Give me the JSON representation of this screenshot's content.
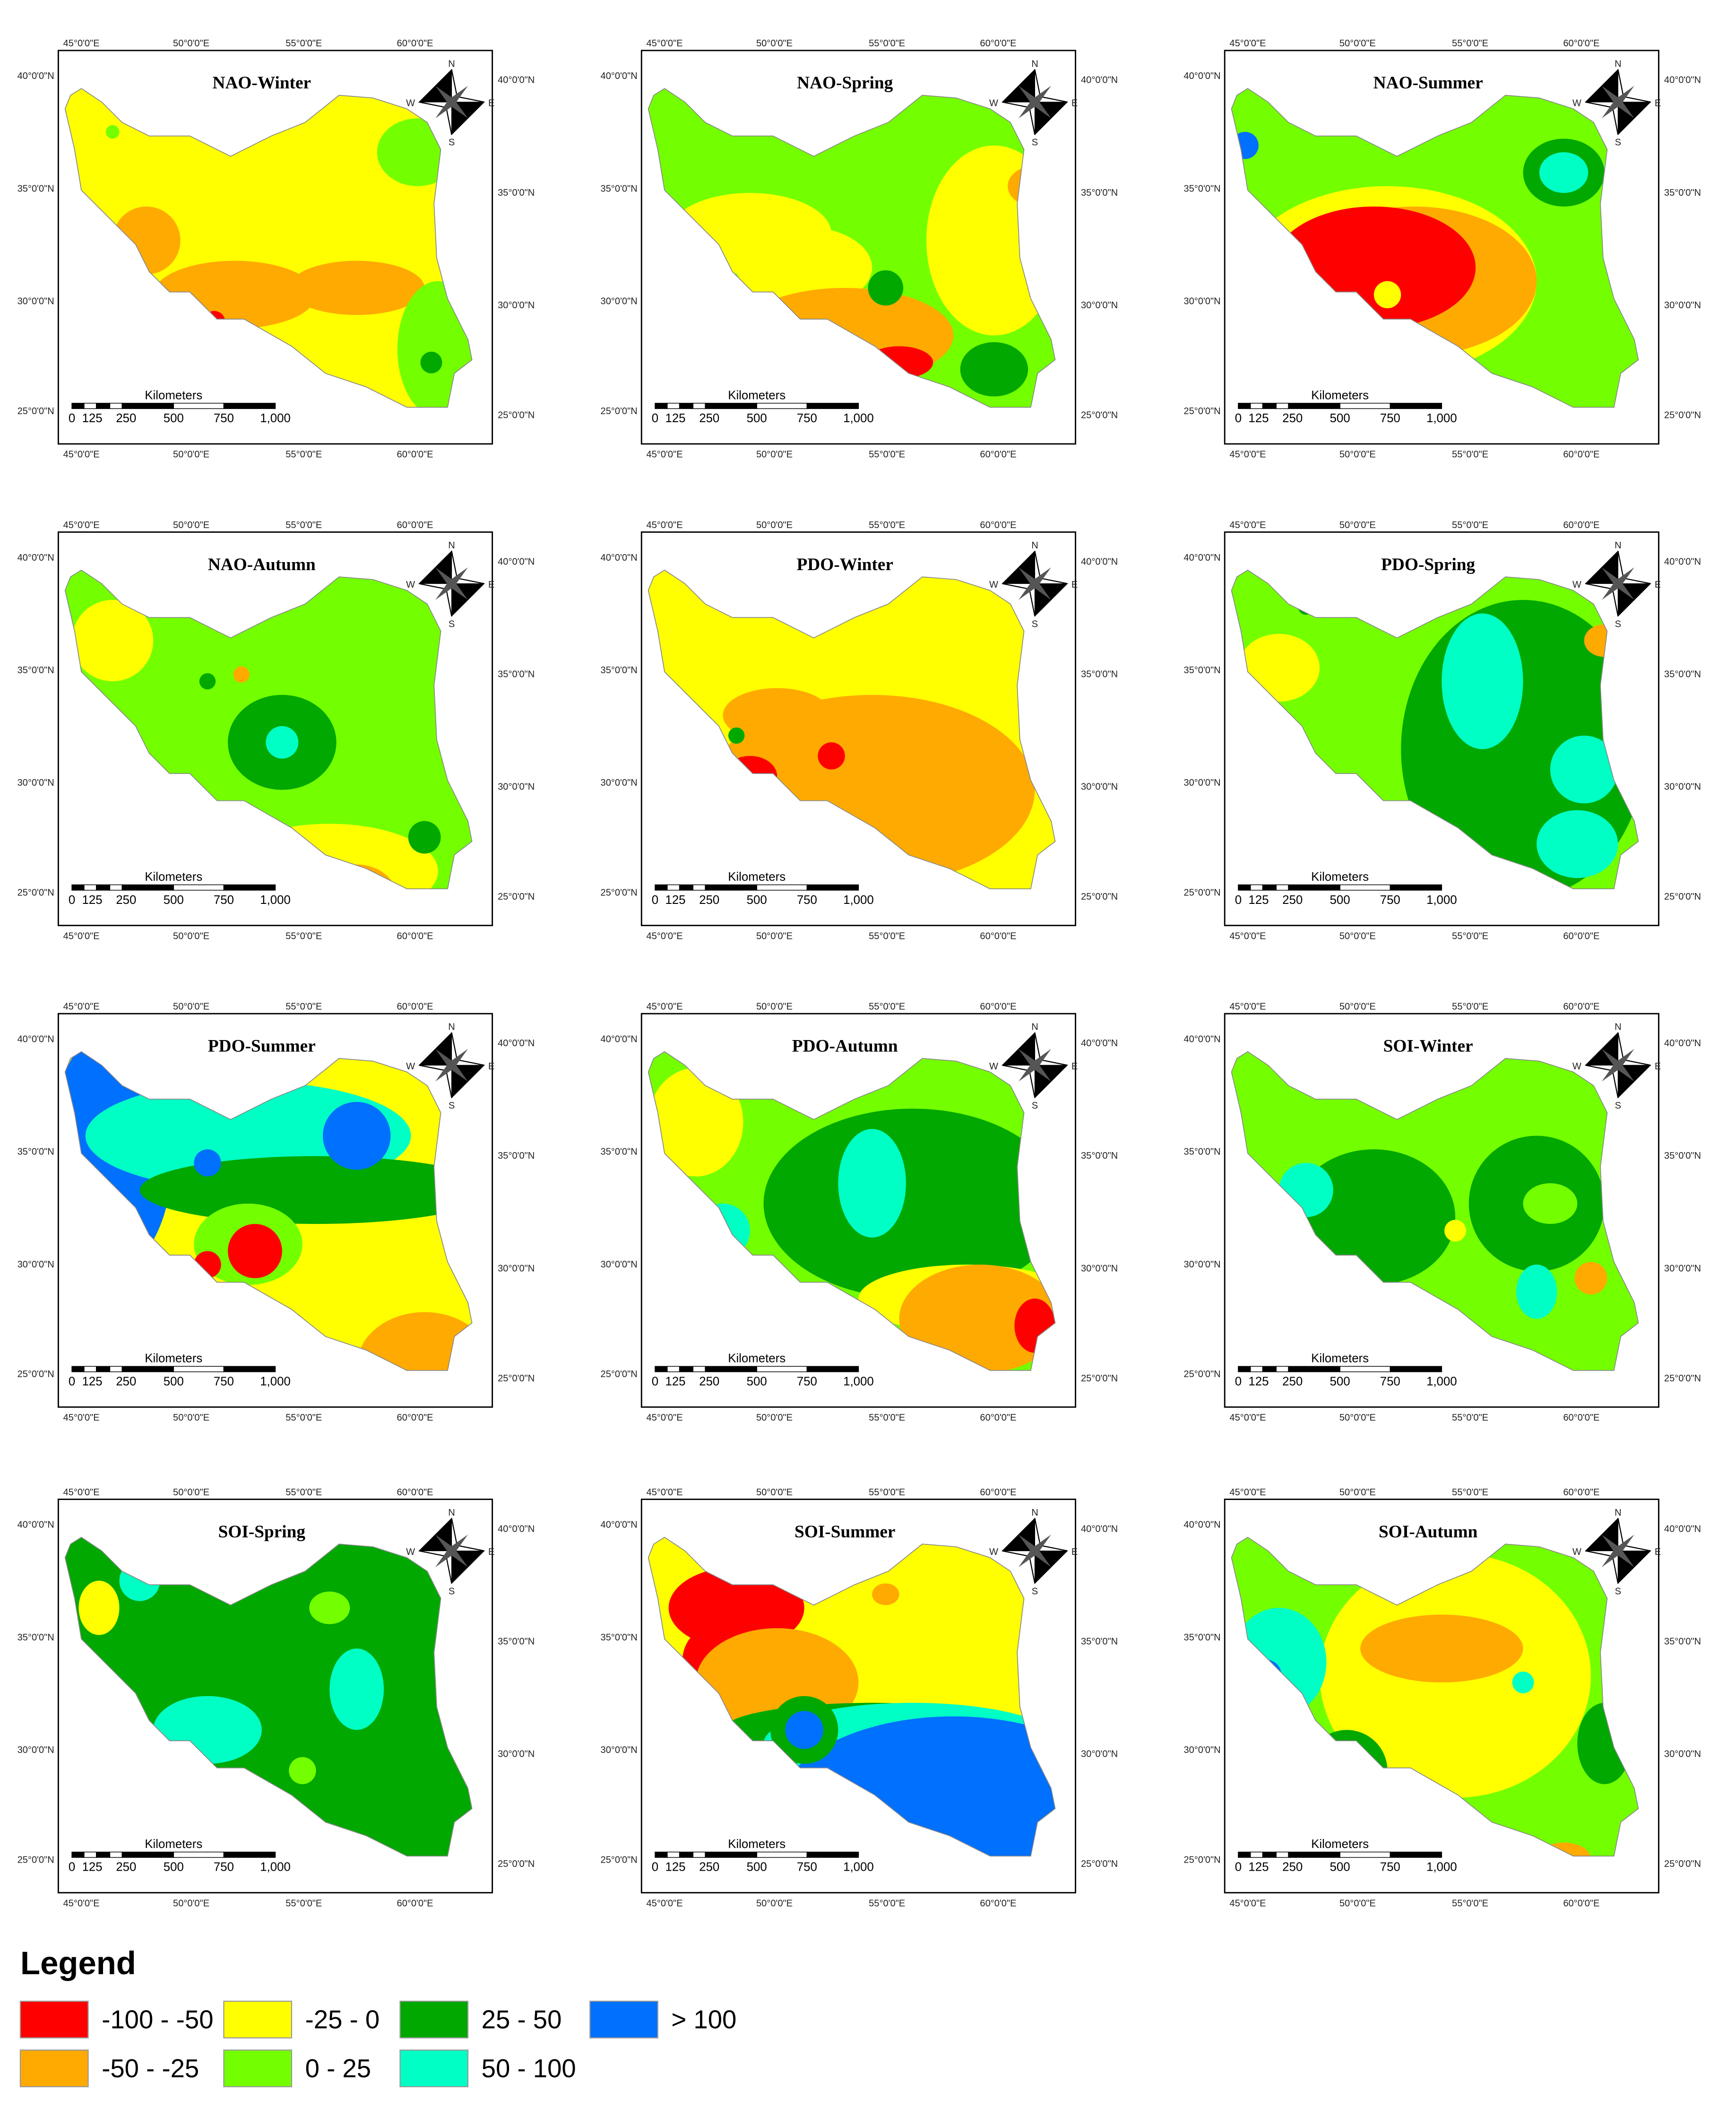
{
  "panels": [
    {
      "title": "NAO-Winter"
    },
    {
      "title": "NAO-Spring"
    },
    {
      "title": "NAO-Summer"
    },
    {
      "title": "NAO-Autumn"
    },
    {
      "title": "PDO-Winter"
    },
    {
      "title": "PDO-Spring"
    },
    {
      "title": "PDO-Summer"
    },
    {
      "title": "PDO-Autumn"
    },
    {
      "title": "SOI-Winter"
    },
    {
      "title": "SOI-Spring"
    },
    {
      "title": "SOI-Summer"
    },
    {
      "title": "SOI-Autumn"
    }
  ],
  "map_frame": {
    "lon_labels": [
      "45°0'0\"E",
      "50°0'0\"E",
      "55°0'0\"E",
      "60°0'0\"E"
    ],
    "lat_labels": [
      "40°0'0\"N",
      "35°0'0\"N",
      "30°0'0\"N",
      "25°0'0\"N"
    ],
    "scale_title": "Kilometers",
    "scale_labels": [
      "0",
      "125",
      "250",
      "500",
      "750",
      "1,000"
    ],
    "compass": {
      "n": "N",
      "e": "E",
      "s": "S",
      "w": "W"
    }
  },
  "legend": {
    "title": "Legend",
    "items": [
      {
        "label": "-100 - -50",
        "color": "#ff0000"
      },
      {
        "label": "-50 - -25",
        "color": "#ffaa00"
      },
      {
        "label": "-25 - 0",
        "color": "#ffff00"
      },
      {
        "label": "0 - 25",
        "color": "#73ff00"
      },
      {
        "label": "25 - 50",
        "color": "#00a800"
      },
      {
        "label": "50 - 100",
        "color": "#00ffc5"
      },
      {
        "label": "> 100",
        "color": "#0070ff"
      }
    ]
  }
}
